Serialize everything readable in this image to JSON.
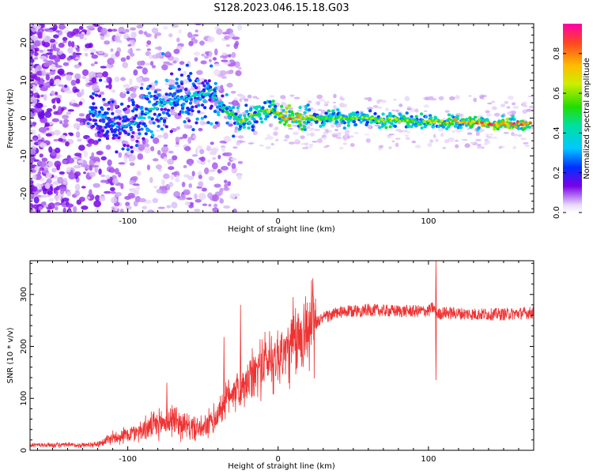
{
  "title": "S128.2023.046.15.18.G03",
  "chart_data": [
    {
      "type": "heatmap",
      "xlabel": "Height of straight line (km)",
      "ylabel": "Frequency (Hz)",
      "xlim": [
        -165,
        170
      ],
      "ylim": [
        -25,
        25
      ],
      "xticks": [
        -100,
        0,
        100
      ],
      "yticks": [
        -20,
        -10,
        0,
        10,
        20
      ],
      "colorbar": {
        "label": "Normalized spectral amplitude",
        "range": [
          0,
          0.95
        ],
        "ticks": [
          0.0,
          0.2,
          0.4,
          0.6,
          0.8
        ]
      },
      "ridge": [
        {
          "x": -125,
          "y": 2,
          "amp": 0.35
        },
        {
          "x": -115,
          "y": 0,
          "amp": 0.3
        },
        {
          "x": -105,
          "y": -3,
          "amp": 0.3
        },
        {
          "x": -95,
          "y": -1,
          "amp": 0.35
        },
        {
          "x": -85,
          "y": 2,
          "amp": 0.4
        },
        {
          "x": -75,
          "y": 4,
          "amp": 0.4
        },
        {
          "x": -65,
          "y": 5,
          "amp": 0.35
        },
        {
          "x": -55,
          "y": 6,
          "amp": 0.4
        },
        {
          "x": -45,
          "y": 7,
          "amp": 0.4
        },
        {
          "x": -35,
          "y": 2,
          "amp": 0.45
        },
        {
          "x": -25,
          "y": -1,
          "amp": 0.6
        },
        {
          "x": -15,
          "y": 1,
          "amp": 0.5
        },
        {
          "x": -5,
          "y": 2,
          "amp": 0.55
        },
        {
          "x": 5,
          "y": 0,
          "amp": 0.8
        },
        {
          "x": 15,
          "y": 0,
          "amp": 0.7
        },
        {
          "x": 30,
          "y": 0,
          "amp": 0.55
        },
        {
          "x": 50,
          "y": 0,
          "amp": 0.55
        },
        {
          "x": 75,
          "y": -0.5,
          "amp": 0.6
        },
        {
          "x": 95,
          "y": -1,
          "amp": 0.55
        },
        {
          "x": 120,
          "y": -1,
          "amp": 0.7
        },
        {
          "x": 145,
          "y": -1.5,
          "amp": 0.8
        },
        {
          "x": 168,
          "y": -1.5,
          "amp": 0.75
        }
      ]
    },
    {
      "type": "line",
      "xlabel": "Height of straight line (km)",
      "ylabel": "SNR (10 * v/v)",
      "xlim": [
        -165,
        170
      ],
      "ylim": [
        0,
        365
      ],
      "xticks": [
        -100,
        0,
        100
      ],
      "yticks": [
        0,
        100,
        200,
        300
      ],
      "line_color": "#ee3333",
      "series": [
        {
          "x": [
            -165,
            -150,
            -130,
            -120,
            -110,
            -100,
            -90,
            -80,
            -70,
            -60,
            -50,
            -42,
            -36,
            -30,
            -25,
            -20,
            -15,
            -10,
            -5,
            0,
            5,
            10,
            15,
            20,
            25,
            30,
            40,
            50,
            60,
            80,
            100,
            103,
            105,
            107,
            110,
            130,
            150,
            170
          ],
          "values": [
            10,
            10,
            10,
            12,
            25,
            30,
            40,
            50,
            60,
            45,
            40,
            60,
            90,
            120,
            110,
            130,
            150,
            170,
            175,
            180,
            190,
            200,
            220,
            235,
            245,
            255,
            265,
            268,
            270,
            268,
            268,
            275,
            265,
            262,
            265,
            262,
            262,
            265
          ]
        }
      ],
      "spikes": [
        {
          "x": -74,
          "y": 130
        },
        {
          "x": -36,
          "y": 218
        },
        {
          "x": -25,
          "y": 280
        },
        {
          "x": 10,
          "y": 295
        },
        {
          "x": 105,
          "y": 365
        },
        {
          "x": 105,
          "y": 135
        }
      ]
    }
  ]
}
